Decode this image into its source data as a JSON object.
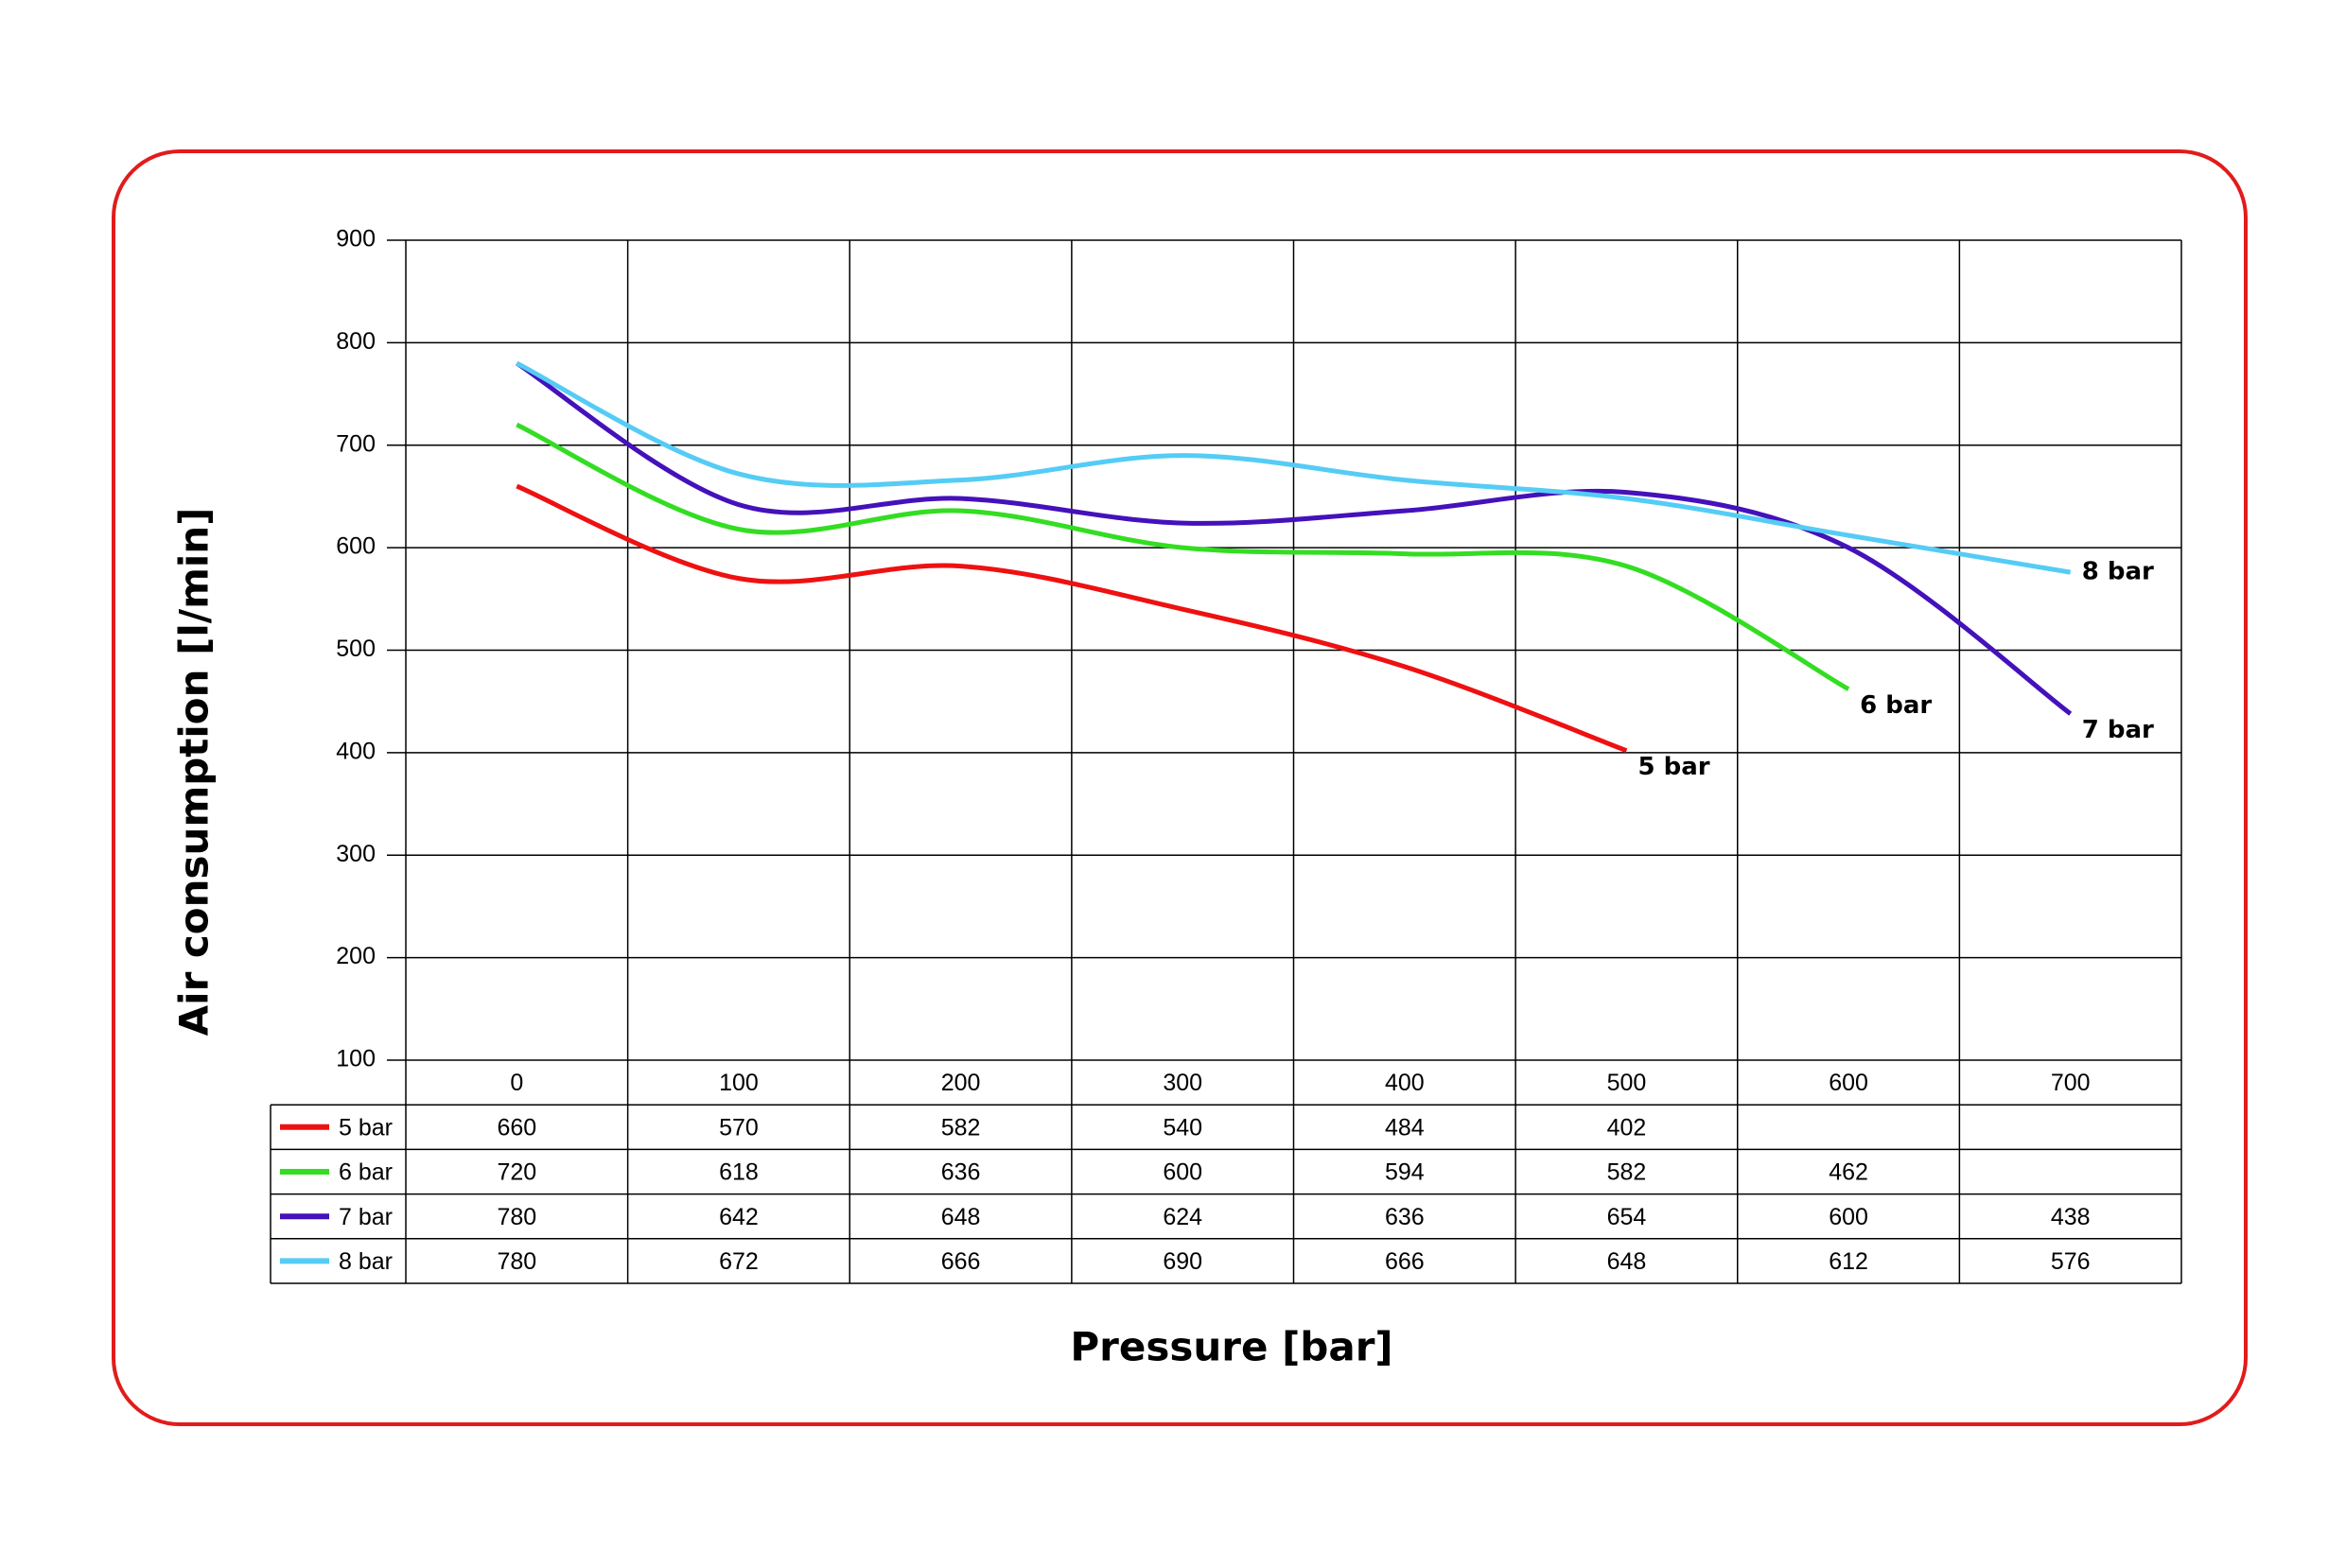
{
  "chart_data": {
    "type": "line",
    "y_label": "Air consumption [l/min]",
    "x_label": "Pressure [bar]",
    "categories": [
      0,
      100,
      200,
      300,
      400,
      500,
      600,
      700
    ],
    "series": [
      {
        "name": "5 bar",
        "color": "#ee1111",
        "values": [
          660,
          570,
          582,
          540,
          484,
          402,
          null,
          null
        ]
      },
      {
        "name": "6 bar",
        "color": "#33dd22",
        "values": [
          720,
          618,
          636,
          600,
          594,
          582,
          462,
          null
        ]
      },
      {
        "name": "7 bar",
        "color": "#4411bb",
        "values": [
          780,
          642,
          648,
          624,
          636,
          654,
          600,
          438
        ]
      },
      {
        "name": "8 bar",
        "color": "#55ccf5",
        "values": [
          780,
          672,
          666,
          690,
          666,
          648,
          612,
          576
        ]
      }
    ],
    "ylim": [
      100,
      900
    ],
    "yticks": [
      100,
      200,
      300,
      400,
      500,
      600,
      700,
      800,
      900
    ],
    "grid": true
  }
}
